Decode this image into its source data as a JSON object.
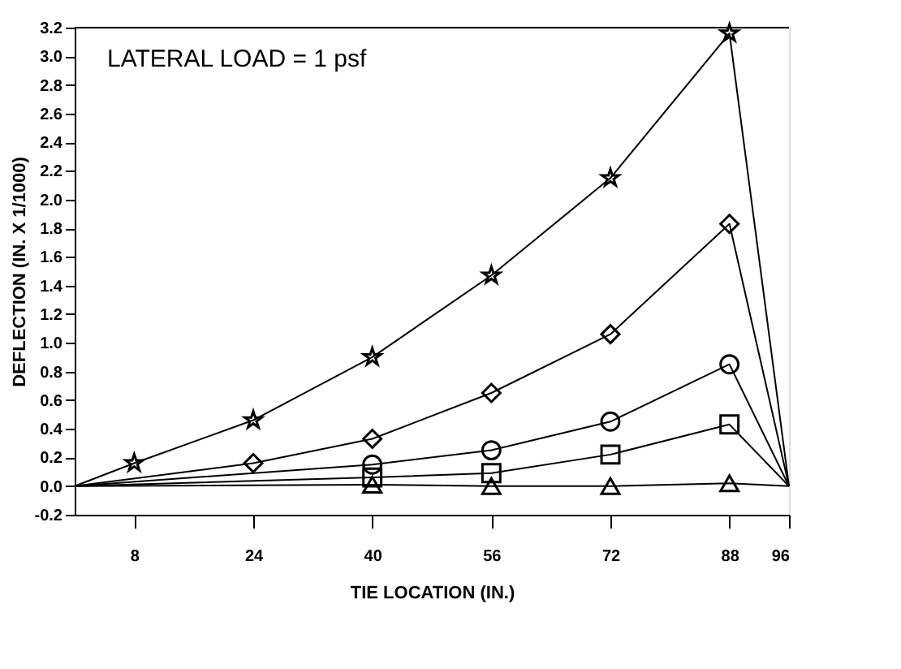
{
  "chart_data": {
    "type": "line",
    "xlabel": "TIE LOCATION (IN.)",
    "ylabel": "DEFLECTION (IN. X 1/1000)",
    "annotations": [
      "LATERAL LOAD = 1 psf"
    ],
    "xlim": [
      0,
      96
    ],
    "xticks": [
      8,
      24,
      40,
      56,
      72,
      88,
      96
    ],
    "ylim": [
      -0.2,
      3.2
    ],
    "yticks": [
      {
        "value": -0.2,
        "label": "-0.2"
      },
      {
        "value": 0,
        "label": "0.0"
      },
      {
        "value": 0.2,
        "label": "0.2"
      },
      {
        "value": 0.4,
        "label": "0.4"
      },
      {
        "value": 0.6,
        "label": "0.6"
      },
      {
        "value": 0.8,
        "label": "0.8"
      },
      {
        "value": 1,
        "label": "1.0"
      },
      {
        "value": 1.2,
        "label": "1.2"
      },
      {
        "value": 1.4,
        "label": "1.4"
      },
      {
        "value": 1.6,
        "label": "1.6"
      },
      {
        "value": 1.8,
        "label": "1.8"
      },
      {
        "value": 2,
        "label": "2.0"
      },
      {
        "value": 2.2,
        "label": "2.2"
      },
      {
        "value": 2.4,
        "label": "2.4"
      },
      {
        "value": 2.6,
        "label": "2.6"
      },
      {
        "value": 2.8,
        "label": "2.8"
      },
      {
        "value": 3,
        "label": "3.0"
      },
      {
        "value": 3.2,
        "label": "3.2"
      }
    ],
    "grid": false,
    "legend": false,
    "line_style": "solid",
    "series": [
      {
        "color": "#000000",
        "marker": "star",
        "x": [
          0,
          8,
          24,
          40,
          56,
          72,
          88,
          96
        ],
        "values": [
          0,
          0.16,
          0.46,
          0.9,
          1.47,
          2.15,
          3.16,
          0
        ]
      },
      {
        "color": "#000000",
        "marker": "diamond",
        "x": [
          0,
          24,
          40,
          56,
          72,
          88,
          96
        ],
        "values": [
          0,
          0.16,
          0.33,
          0.65,
          1.06,
          1.83,
          0
        ]
      },
      {
        "color": "#000000",
        "marker": "circle",
        "x": [
          0,
          40,
          56,
          72,
          88,
          96
        ],
        "values": [
          0,
          0.15,
          0.25,
          0.45,
          0.85,
          0
        ]
      },
      {
        "color": "#000000",
        "marker": "square",
        "x": [
          0,
          40,
          56,
          72,
          88,
          96
        ],
        "values": [
          0,
          0.06,
          0.09,
          0.22,
          0.43,
          0
        ]
      },
      {
        "color": "#000000",
        "marker": "triangle",
        "x": [
          0,
          40,
          56,
          72,
          88,
          96
        ],
        "values": [
          0,
          0.01,
          0,
          0,
          0.02,
          0
        ]
      }
    ]
  }
}
